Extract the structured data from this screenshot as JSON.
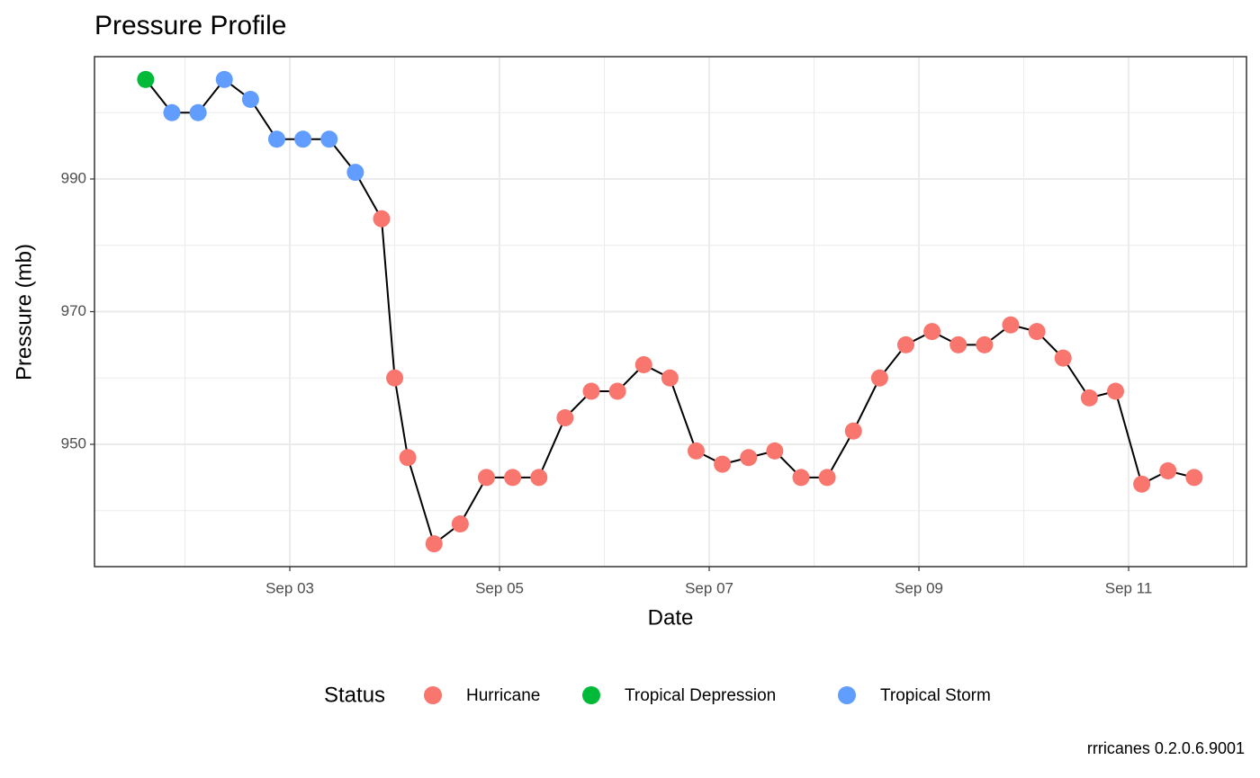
{
  "chart_data": {
    "type": "line",
    "title": "Pressure Profile",
    "x_label": "Date",
    "y_label": "Pressure (mb)",
    "caption": "rrricanes 0.2.0.6.9001",
    "x": [
      1.625,
      1.875,
      2.125,
      2.375,
      2.625,
      2.875,
      3.125,
      3.375,
      3.625,
      3.875,
      4.0,
      4.125,
      4.375,
      4.625,
      4.875,
      5.125,
      5.375,
      5.625,
      5.875,
      6.125,
      6.375,
      6.625,
      6.875,
      7.125,
      7.375,
      7.625,
      7.875,
      8.125,
      8.375,
      8.625,
      8.875,
      9.125,
      9.375,
      9.625,
      9.875,
      10.125,
      10.375,
      10.625,
      10.875,
      11.125,
      11.375,
      11.625
    ],
    "values": [
      1005,
      1000,
      1000,
      1005,
      1002,
      996,
      996,
      996,
      991,
      984,
      960,
      948,
      935,
      938,
      945,
      945,
      945,
      954,
      958,
      958,
      962,
      960,
      949,
      947,
      948,
      949,
      945,
      945,
      952,
      960,
      965,
      967,
      965,
      965,
      968,
      967,
      963,
      957,
      958,
      944,
      946,
      945
    ],
    "status": [
      "Tropical Depression",
      "Tropical Storm",
      "Tropical Storm",
      "Tropical Storm",
      "Tropical Storm",
      "Tropical Storm",
      "Tropical Storm",
      "Tropical Storm",
      "Tropical Storm",
      "Hurricane",
      "Hurricane",
      "Hurricane",
      "Hurricane",
      "Hurricane",
      "Hurricane",
      "Hurricane",
      "Hurricane",
      "Hurricane",
      "Hurricane",
      "Hurricane",
      "Hurricane",
      "Hurricane",
      "Hurricane",
      "Hurricane",
      "Hurricane",
      "Hurricane",
      "Hurricane",
      "Hurricane",
      "Hurricane",
      "Hurricane",
      "Hurricane",
      "Hurricane",
      "Hurricane",
      "Hurricane",
      "Hurricane",
      "Hurricane",
      "Hurricane",
      "Hurricane",
      "Hurricane",
      "Hurricane",
      "Hurricane",
      "Hurricane"
    ],
    "line_color": "#000000",
    "legend": {
      "title": "Status",
      "position": "bottom",
      "items": [
        {
          "name": "Hurricane",
          "color": "#F8766D"
        },
        {
          "name": "Tropical Depression",
          "color": "#00BA38"
        },
        {
          "name": "Tropical Storm",
          "color": "#619CFF"
        }
      ]
    },
    "xlim": [
      1.137,
      12.124
    ],
    "xticks": [
      {
        "value": 3,
        "label": "Sep 03"
      },
      {
        "value": 5,
        "label": "Sep 05"
      },
      {
        "value": 7,
        "label": "Sep 07"
      },
      {
        "value": 9,
        "label": "Sep 09"
      },
      {
        "value": 11,
        "label": "Sep 11"
      }
    ],
    "x_minor_grid": [
      2,
      4,
      6,
      8,
      10,
      12
    ],
    "ylim": [
      931.56,
      1008.44
    ],
    "yticks": [
      950,
      970,
      990
    ],
    "y_minor_grid": [
      940,
      960,
      980,
      1000
    ],
    "grid": true
  }
}
